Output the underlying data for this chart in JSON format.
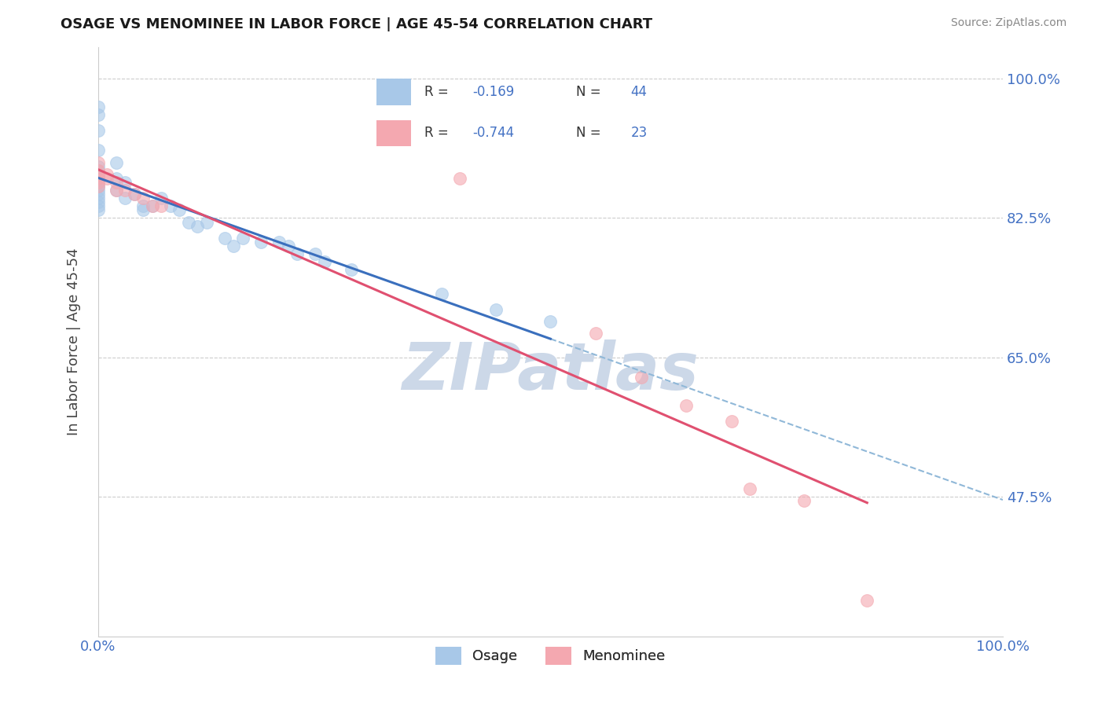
{
  "title": "OSAGE VS MENOMINEE IN LABOR FORCE | AGE 45-54 CORRELATION CHART",
  "source": "Source: ZipAtlas.com",
  "ylabel": "In Labor Force | Age 45-54",
  "osage_color": "#a8c8e8",
  "menominee_color": "#f4a8b0",
  "osage_line_color": "#3a6fbd",
  "menominee_line_color": "#e05070",
  "dashed_line_color": "#90b8d8",
  "background_color": "#ffffff",
  "watermark_text": "ZIPatlas",
  "watermark_color": "#ccd8e8",
  "title_color": "#1a1a1a",
  "axis_label_color": "#444444",
  "tick_label_color": "#4472c4",
  "grid_color": "#cccccc",
  "osage_points": [
    [
      0.0,
      0.965
    ],
    [
      0.0,
      0.955
    ],
    [
      0.0,
      0.935
    ],
    [
      0.0,
      0.91
    ],
    [
      0.0,
      0.89
    ],
    [
      0.0,
      0.885
    ],
    [
      0.0,
      0.88
    ],
    [
      0.0,
      0.875
    ],
    [
      0.0,
      0.87
    ],
    [
      0.0,
      0.865
    ],
    [
      0.0,
      0.86
    ],
    [
      0.0,
      0.855
    ],
    [
      0.0,
      0.85
    ],
    [
      0.0,
      0.845
    ],
    [
      0.0,
      0.84
    ],
    [
      0.0,
      0.835
    ],
    [
      0.02,
      0.895
    ],
    [
      0.02,
      0.875
    ],
    [
      0.02,
      0.86
    ],
    [
      0.03,
      0.87
    ],
    [
      0.03,
      0.85
    ],
    [
      0.04,
      0.855
    ],
    [
      0.05,
      0.84
    ],
    [
      0.05,
      0.835
    ],
    [
      0.06,
      0.84
    ],
    [
      0.07,
      0.85
    ],
    [
      0.08,
      0.84
    ],
    [
      0.09,
      0.835
    ],
    [
      0.1,
      0.82
    ],
    [
      0.11,
      0.815
    ],
    [
      0.12,
      0.82
    ],
    [
      0.14,
      0.8
    ],
    [
      0.15,
      0.79
    ],
    [
      0.16,
      0.8
    ],
    [
      0.18,
      0.795
    ],
    [
      0.2,
      0.795
    ],
    [
      0.21,
      0.79
    ],
    [
      0.22,
      0.78
    ],
    [
      0.24,
      0.78
    ],
    [
      0.25,
      0.77
    ],
    [
      0.28,
      0.76
    ],
    [
      0.38,
      0.73
    ],
    [
      0.44,
      0.71
    ],
    [
      0.5,
      0.695
    ]
  ],
  "menominee_points": [
    [
      0.0,
      0.895
    ],
    [
      0.0,
      0.885
    ],
    [
      0.0,
      0.88
    ],
    [
      0.0,
      0.875
    ],
    [
      0.0,
      0.87
    ],
    [
      0.0,
      0.865
    ],
    [
      0.01,
      0.88
    ],
    [
      0.01,
      0.875
    ],
    [
      0.02,
      0.87
    ],
    [
      0.02,
      0.86
    ],
    [
      0.03,
      0.86
    ],
    [
      0.04,
      0.855
    ],
    [
      0.05,
      0.85
    ],
    [
      0.06,
      0.84
    ],
    [
      0.07,
      0.84
    ],
    [
      0.4,
      0.875
    ],
    [
      0.55,
      0.68
    ],
    [
      0.6,
      0.625
    ],
    [
      0.65,
      0.59
    ],
    [
      0.7,
      0.57
    ],
    [
      0.72,
      0.485
    ],
    [
      0.78,
      0.47
    ],
    [
      0.85,
      0.345
    ]
  ],
  "xlim": [
    0.0,
    1.0
  ],
  "ylim": [
    0.3,
    1.04
  ],
  "y_ticks": [
    0.475,
    0.65,
    0.825,
    1.0
  ],
  "x_ticks": [
    0.0,
    1.0
  ],
  "figsize": [
    14.06,
    8.92
  ],
  "dpi": 100
}
